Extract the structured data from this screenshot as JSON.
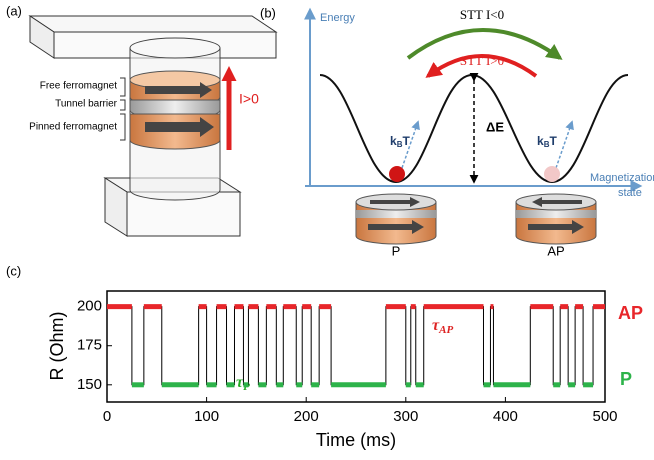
{
  "panel_a": {
    "label": "(a)",
    "layers": [
      "Free ferromagnet",
      "Tunnel barrier",
      "Pinned ferromagnet"
    ],
    "current": "I>0"
  },
  "panel_b": {
    "label": "(b)",
    "y_axis": "Energy",
    "x_axis": [
      "Magnetization",
      "state"
    ],
    "stt_negative": "STT I<0",
    "stt_positive": "STT I>0",
    "barrier": "ΔE",
    "thermal": {
      "k": "k",
      "sub": "B",
      "t": "T"
    },
    "states": [
      "P",
      "AP"
    ]
  },
  "chart_data": {
    "type": "line",
    "label": "(c)",
    "xlabel": "Time (ms)",
    "ylabel": "R (Ohm)",
    "x": [
      0,
      25,
      25,
      37,
      37,
      55,
      55,
      92,
      92,
      100,
      100,
      110,
      110,
      120,
      120,
      128,
      128,
      137,
      137,
      142,
      142,
      152,
      152,
      160,
      160,
      170,
      170,
      177,
      177,
      190,
      190,
      196,
      196,
      205,
      205,
      213,
      213,
      225,
      225,
      280,
      280,
      300,
      300,
      305,
      305,
      310,
      310,
      318,
      318,
      378,
      378,
      385,
      385,
      388,
      388,
      425,
      425,
      448,
      448,
      455,
      455,
      463,
      463,
      470,
      470,
      478,
      478,
      488,
      488,
      500
    ],
    "values": [
      200,
      200,
      150,
      150,
      200,
      200,
      150,
      150,
      200,
      200,
      150,
      150,
      200,
      200,
      150,
      150,
      200,
      200,
      150,
      150,
      200,
      200,
      150,
      150,
      200,
      200,
      150,
      150,
      200,
      200,
      150,
      150,
      200,
      200,
      150,
      150,
      200,
      200,
      150,
      150,
      200,
      200,
      150,
      150,
      200,
      200,
      150,
      150,
      200,
      200,
      150,
      150,
      200,
      200,
      150,
      150,
      200,
      200,
      150,
      150,
      200,
      200,
      150,
      150,
      200,
      200,
      150,
      150,
      200,
      200
    ],
    "color": "#000000",
    "high_color": "#e8262a",
    "low_color": "#2db34a",
    "xlim": [
      0,
      500
    ],
    "ylim": [
      139,
      210
    ],
    "xticks": [
      0,
      100,
      200,
      300,
      400,
      500
    ],
    "yticks": [
      150,
      175,
      200
    ],
    "high_label": "AP",
    "low_label": "P",
    "tau_ap": {
      "symbol": "τ",
      "sub": "AP"
    },
    "tau_p": {
      "symbol": "τ",
      "sub": "P"
    }
  }
}
